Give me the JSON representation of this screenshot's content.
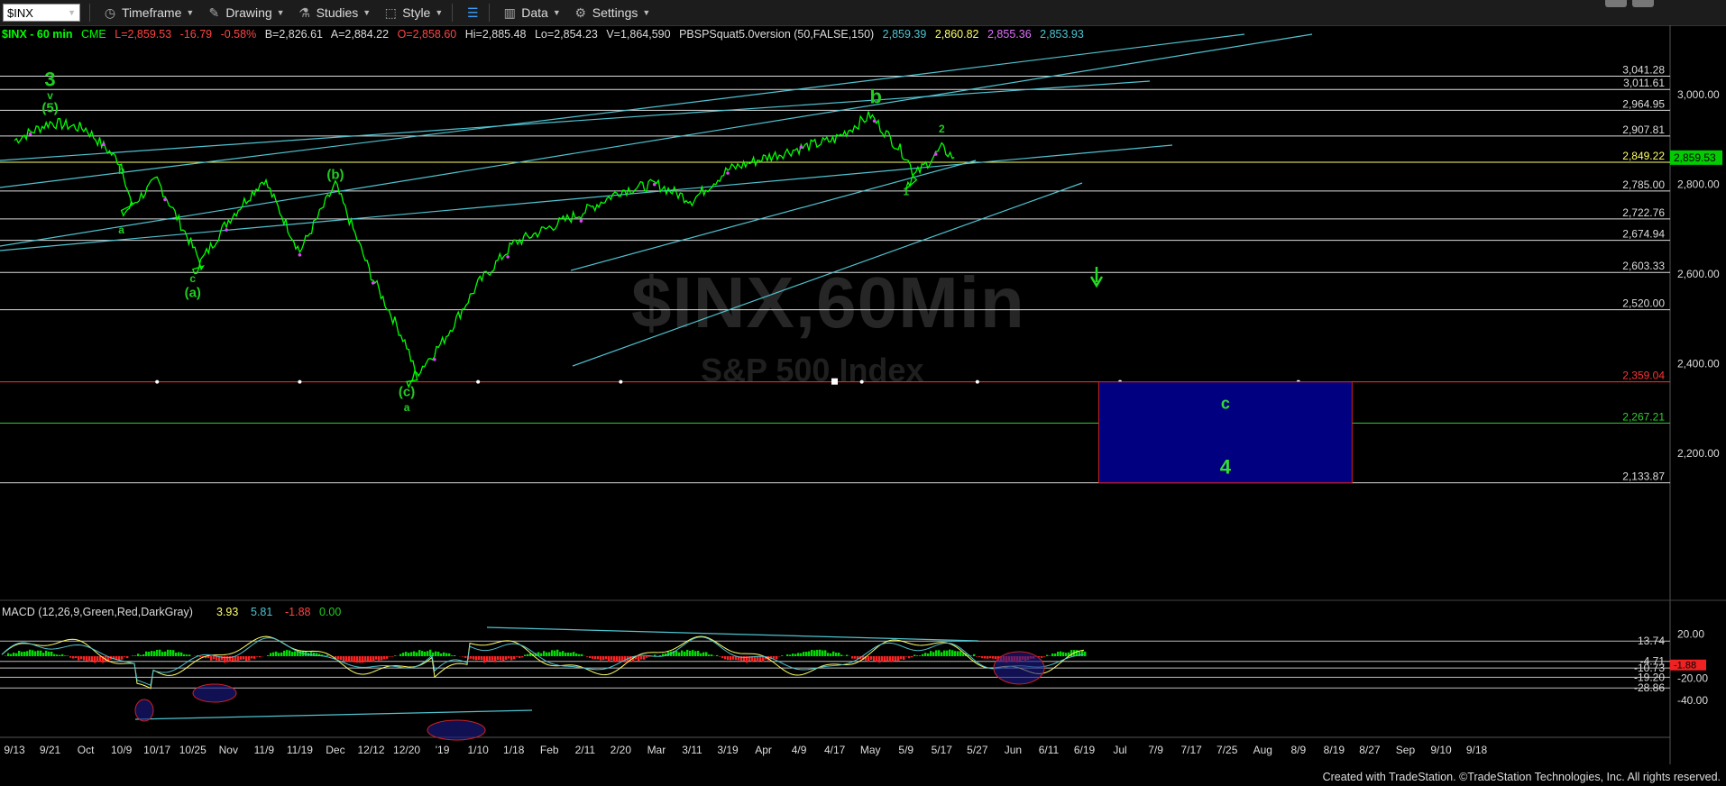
{
  "toolbar": {
    "symbol": "$INX",
    "timeframe": "Timeframe",
    "drawing": "Drawing",
    "studies": "Studies",
    "style": "Style",
    "data": "Data",
    "settings": "Settings"
  },
  "header": {
    "symbol": "$INX - 60 min",
    "exchange": "CME",
    "last": "L=2,859.53",
    "change": "-16.79",
    "change_pct": "-0.58%",
    "bid": "B=2,826.61",
    "ask": "A=2,884.22",
    "open": "O=2,858.60",
    "high": "Hi=2,885.48",
    "low": "Lo=2,854.23",
    "volume": "V=1,864,590",
    "study": "PBSPSquat5.0version (50,FALSE,150)",
    "study_values": [
      "2,859.39",
      "2,860.82",
      "2,855.36",
      "2,853.93"
    ]
  },
  "watermark": {
    "symbol": "$INX,60Min",
    "name": "S&P 500 Index"
  },
  "macd_header": {
    "label": "MACD (12,26,9,Green,Red,DarkGray)",
    "values": [
      "3.93",
      "5.81",
      "-1.88",
      "0.00"
    ]
  },
  "footer": "Created with TradeStation. ©TradeStation Technologies, Inc. All rights reserved.",
  "colors": {
    "price": "#00ff00",
    "trendline": "#4fc3d0",
    "level": "#ffffff",
    "yellow": "#ffff66",
    "red": "#ff3333",
    "wave_label": "#22cc22",
    "box_fill": "#000080",
    "macd_green": "#00dd00",
    "macd_red": "#ff2222"
  },
  "chart_data": {
    "type": "line",
    "title": "$INX,60Min",
    "subtitle": "S&P 500 Index",
    "y_axis_labels": [
      "3,000.00",
      "2,800.00",
      "2,600.00",
      "2,400.00",
      "2,200.00"
    ],
    "ylim": [
      2100,
      3100
    ],
    "x_tick_labels": [
      "9/13",
      "9/21",
      "Oct",
      "10/9",
      "10/17",
      "10/25",
      "Nov",
      "11/9",
      "11/19",
      "Dec",
      "12/12",
      "12/20",
      "'19",
      "1/10",
      "1/18",
      "Feb",
      "2/11",
      "2/20",
      "Mar",
      "3/11",
      "3/19",
      "Apr",
      "4/9",
      "4/17",
      "May",
      "5/9",
      "5/17",
      "5/27",
      "Jun",
      "6/11",
      "6/19",
      "Jul",
      "7/9",
      "7/17",
      "7/25",
      "Aug",
      "8/9",
      "8/19",
      "8/27",
      "Sep",
      "9/10",
      "9/18"
    ],
    "price_points": [
      {
        "x": "9/13",
        "y": 2898
      },
      {
        "x": "9/21",
        "y": 2938
      },
      {
        "x": "Oct",
        "y": 2924
      },
      {
        "x": "10/9",
        "y": 2846
      },
      {
        "x": "10/9",
        "y": 2730
      },
      {
        "x": "10/17",
        "y": 2810
      },
      {
        "x": "10/25",
        "y": 2660
      },
      {
        "x": "10/25",
        "y": 2600
      },
      {
        "x": "Nov",
        "y": 2720
      },
      {
        "x": "11/9",
        "y": 2812
      },
      {
        "x": "11/19",
        "y": 2650
      },
      {
        "x": "Dec",
        "y": 2800
      },
      {
        "x": "12/12",
        "y": 2598
      },
      {
        "x": "12/20",
        "y": 2440
      },
      {
        "x": "12/20",
        "y": 2351
      },
      {
        "x": "'19",
        "y": 2448
      },
      {
        "x": "1/10",
        "y": 2578
      },
      {
        "x": "1/18",
        "y": 2668
      },
      {
        "x": "Feb",
        "y": 2704
      },
      {
        "x": "2/11",
        "y": 2740
      },
      {
        "x": "2/20",
        "y": 2786
      },
      {
        "x": "Mar",
        "y": 2800
      },
      {
        "x": "3/11",
        "y": 2764
      },
      {
        "x": "3/19",
        "y": 2832
      },
      {
        "x": "Apr",
        "y": 2858
      },
      {
        "x": "4/9",
        "y": 2880
      },
      {
        "x": "4/17",
        "y": 2900
      },
      {
        "x": "May",
        "y": 2954
      },
      {
        "x": "5/9",
        "y": 2862
      },
      {
        "x": "5/9",
        "y": 2800
      },
      {
        "x": "5/17",
        "y": 2880
      },
      {
        "x": "5/17",
        "y": 2860
      }
    ],
    "horizontal_levels": [
      {
        "value": 3041.28,
        "label": "3,041.28",
        "color": "white"
      },
      {
        "value": 3011.61,
        "label": "3,011.61",
        "color": "white"
      },
      {
        "value": 2964.95,
        "label": "2,964.95",
        "color": "white"
      },
      {
        "value": 2907.81,
        "label": "2,907.81",
        "color": "white"
      },
      {
        "value": 2849.22,
        "label": "2,849.22",
        "color": "yellow"
      },
      {
        "value": 2785.0,
        "label": "2,785.00",
        "color": "white"
      },
      {
        "value": 2722.76,
        "label": "2,722.76",
        "color": "white"
      },
      {
        "value": 2674.94,
        "label": "2,674.94",
        "color": "white"
      },
      {
        "value": 2603.33,
        "label": "2,603.33",
        "color": "white"
      },
      {
        "value": 2520.0,
        "label": "2,520.00",
        "color": "white"
      },
      {
        "value": 2359.04,
        "label": "2,359.04",
        "color": "red"
      },
      {
        "value": 2267.21,
        "label": "2,267.21",
        "color": "green"
      },
      {
        "value": 2133.87,
        "label": "2,133.87",
        "color": "white"
      }
    ],
    "last_price_tag": "2,859.53",
    "target_box": {
      "top": 2359.04,
      "bottom": 2133.87,
      "x_start": "6/19",
      "x_end": "8/19",
      "labels": [
        "c",
        "4"
      ]
    },
    "wave_labels": [
      {
        "text": "3",
        "x": "9/21",
        "y": 3019
      },
      {
        "text": "v",
        "x": "9/21",
        "y": 2990
      },
      {
        "text": "(5)",
        "x": "9/21",
        "y": 2961
      },
      {
        "text": "a",
        "x": "10/9",
        "y": 2690
      },
      {
        "text": "b",
        "x": "10/9",
        "y": 2823
      },
      {
        "text": "c",
        "x": "10/25",
        "y": 2582
      },
      {
        "text": "(a)",
        "x": "10/25",
        "y": 2548
      },
      {
        "text": "(b)",
        "x": "Dec",
        "y": 2812
      },
      {
        "text": "(c)",
        "x": "12/20",
        "y": 2327
      },
      {
        "text": "a",
        "x": "12/20",
        "y": 2294
      },
      {
        "text": "b",
        "x": "May",
        "y": 2981
      },
      {
        "text": "2",
        "x": "5/17",
        "y": 2916
      },
      {
        "text": "1",
        "x": "5/9",
        "y": 2776
      }
    ],
    "macd": {
      "y_axis_labels": [
        "20.00",
        "-20.00",
        "-40.00"
      ],
      "levels": [
        {
          "value": 13.74,
          "label": "13.74"
        },
        {
          "value": -4.71,
          "label": "-4.71"
        },
        {
          "value": -10.73,
          "label": "-10.73"
        },
        {
          "value": -19.2,
          "label": "-19.20"
        },
        {
          "value": -28.86,
          "label": "-28.86"
        }
      ],
      "last_tag": "-1.88",
      "ylim": [
        -45,
        25
      ]
    },
    "grid": false,
    "legend": "none"
  }
}
